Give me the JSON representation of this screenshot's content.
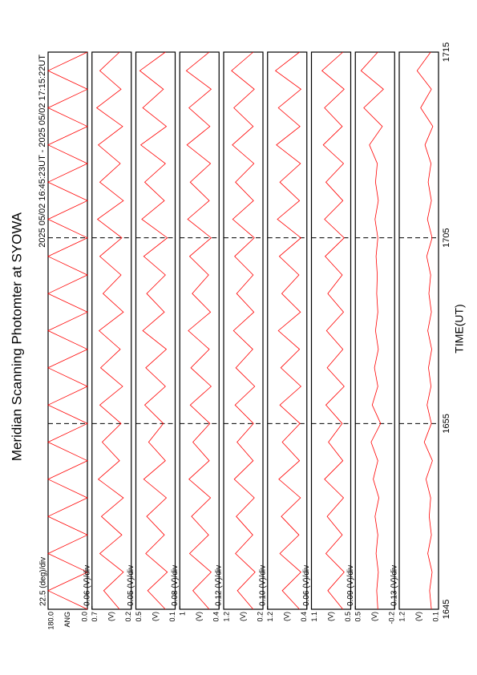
{
  "chart_data": {
    "type": "line",
    "title": "Meridian Scanning Photomter at SYOWA",
    "subtitle": "2025 05/02 16:45:23UT - 2025 05/02 17:15:22UT",
    "xlabel": "TIME(UT)",
    "color": "#ff0000",
    "xlim": [
      0,
      30
    ],
    "xticks": [
      {
        "value": 0,
        "label": "1645"
      },
      {
        "value": 10,
        "label": "1655"
      },
      {
        "value": 20,
        "label": "1705"
      },
      {
        "value": 30,
        "label": "1715"
      }
    ],
    "x": [
      0,
      1,
      2,
      3,
      4,
      5,
      6,
      7,
      8,
      9,
      10,
      11,
      12,
      13,
      14,
      15,
      16,
      17,
      18,
      19,
      20,
      21,
      22,
      23,
      24,
      25,
      26,
      27,
      28,
      29,
      30
    ],
    "panels": [
      {
        "scale_label": "22.5 (deg)/div",
        "unit_label": "ANG",
        "ylim": [
          0,
          180
        ],
        "yticks": [
          {
            "value": 180,
            "label": "180.0"
          },
          {
            "value": 0,
            "label": "0.0"
          }
        ],
        "values": [
          0,
          180,
          0,
          180,
          0,
          180,
          0,
          180,
          0,
          180,
          0,
          180,
          0,
          180,
          0,
          180,
          0,
          180,
          0,
          180,
          0,
          180,
          0,
          180,
          0,
          180,
          0,
          180,
          0,
          180,
          0
        ]
      },
      {
        "scale_label": "0.06 (V)/div",
        "unit_label": "(V)",
        "ylim": [
          0.2,
          0.7
        ],
        "yticks": [
          0.7,
          0.2
        ],
        "values": [
          0.35,
          0.55,
          0.3,
          0.6,
          0.32,
          0.58,
          0.3,
          0.62,
          0.35,
          0.57,
          0.33,
          0.6,
          0.31,
          0.59,
          0.34,
          0.61,
          0.3,
          0.56,
          0.33,
          0.6,
          0.32,
          0.63,
          0.3,
          0.6,
          0.34,
          0.62,
          0.31,
          0.64,
          0.33,
          0.6,
          0.35
        ]
      },
      {
        "scale_label": "0.05 (V)/div",
        "unit_label": "(V)",
        "ylim": [
          0.1,
          0.5
        ],
        "yticks": [
          0.5,
          0.1
        ],
        "values": [
          0.2,
          0.38,
          0.18,
          0.4,
          0.21,
          0.39,
          0.19,
          0.42,
          0.2,
          0.37,
          0.22,
          0.41,
          0.2,
          0.4,
          0.19,
          0.43,
          0.21,
          0.39,
          0.2,
          0.42,
          0.18,
          0.44,
          0.21,
          0.41,
          0.2,
          0.45,
          0.19,
          0.43,
          0.22,
          0.46,
          0.2
        ]
      },
      {
        "scale_label": "0.08 (V)/div",
        "unit_label": "(V)",
        "ylim": [
          0.4,
          1.0
        ],
        "yticks": [
          1.0,
          0.4
        ],
        "values": [
          0.55,
          0.8,
          0.52,
          0.85,
          0.56,
          0.82,
          0.53,
          0.86,
          0.55,
          0.8,
          0.54,
          0.84,
          0.52,
          0.83,
          0.55,
          0.87,
          0.53,
          0.81,
          0.56,
          0.85,
          0.52,
          0.88,
          0.55,
          0.84,
          0.53,
          0.89,
          0.54,
          0.86,
          0.52,
          0.9,
          0.55
        ]
      },
      {
        "scale_label": "0.12 (V)/div",
        "unit_label": "(V)",
        "ylim": [
          0.2,
          1.2
        ],
        "yticks": [
          1.2,
          0.2
        ],
        "values": [
          0.45,
          0.85,
          0.4,
          0.9,
          0.46,
          0.88,
          0.42,
          0.93,
          0.45,
          0.86,
          0.44,
          0.91,
          0.41,
          0.89,
          0.46,
          0.95,
          0.43,
          0.87,
          0.45,
          0.92,
          0.42,
          0.97,
          0.44,
          0.9,
          0.43,
          0.98,
          0.45,
          0.94,
          0.42,
          1.0,
          0.45
        ]
      },
      {
        "scale_label": "0.10 (V)/div",
        "unit_label": "(V)",
        "ylim": [
          0.4,
          1.2
        ],
        "yticks": [
          1.2,
          0.4
        ],
        "values": [
          0.55,
          0.9,
          0.52,
          0.95,
          0.56,
          0.92,
          0.53,
          0.97,
          0.55,
          0.9,
          0.54,
          0.95,
          0.52,
          0.93,
          0.55,
          0.98,
          0.53,
          0.91,
          0.56,
          0.96,
          0.52,
          1.0,
          0.55,
          0.95,
          0.53,
          1.02,
          0.54,
          0.98,
          0.52,
          1.04,
          0.55
        ]
      },
      {
        "scale_label": "0.06 (V)/div",
        "unit_label": "(V)",
        "ylim": [
          0.5,
          1.1
        ],
        "yticks": [
          1.1,
          0.5
        ],
        "values": [
          0.62,
          0.85,
          0.6,
          0.88,
          0.63,
          0.86,
          0.61,
          0.9,
          0.62,
          0.84,
          0.63,
          0.88,
          0.6,
          0.86,
          0.62,
          0.87,
          0.61,
          0.85,
          0.63,
          0.89,
          0.6,
          0.9,
          0.62,
          0.88,
          0.61,
          0.92,
          0.63,
          0.9,
          0.6,
          0.94,
          0.62
        ]
      },
      {
        "scale_label": "0.09 (V)/div",
        "unit_label": "(V)",
        "ylim": [
          -0.2,
          0.5
        ],
        "yticks": [
          0.5,
          -0.2
        ],
        "values": [
          0.1,
          0.12,
          0.09,
          0.13,
          0.1,
          0.15,
          0.08,
          0.18,
          0.1,
          0.22,
          0.05,
          0.2,
          0.1,
          0.16,
          0.09,
          0.14,
          0.1,
          0.12,
          0.11,
          0.13,
          0.1,
          0.15,
          0.09,
          0.14,
          0.11,
          0.25,
          0.02,
          0.35,
          0.0,
          0.4,
          0.1
        ]
      },
      {
        "scale_label": "0.13 (V)/div",
        "unit_label": "(V)",
        "ylim": [
          0.1,
          1.2
        ],
        "yticks": [
          1.2,
          0.1
        ],
        "values": [
          0.3,
          0.35,
          0.28,
          0.4,
          0.3,
          0.36,
          0.32,
          0.45,
          0.27,
          0.5,
          0.3,
          0.42,
          0.31,
          0.38,
          0.29,
          0.4,
          0.3,
          0.37,
          0.32,
          0.43,
          0.28,
          0.41,
          0.3,
          0.39,
          0.31,
          0.48,
          0.26,
          0.6,
          0.3,
          0.7,
          0.32
        ]
      }
    ]
  }
}
